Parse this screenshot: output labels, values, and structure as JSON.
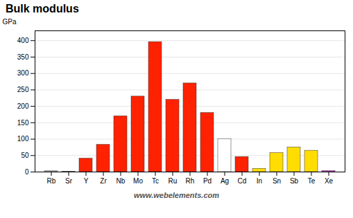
{
  "chart_data": {
    "type": "bar",
    "title": "Bulk modulus",
    "ylabel": "GPa",
    "annotations": [
      "www.webelements.com"
    ],
    "categories": [
      "Rb",
      "Sr",
      "Y",
      "Zr",
      "Nb",
      "Mo",
      "Tc",
      "Ru",
      "Rh",
      "Pd",
      "Ag",
      "Cd",
      "In",
      "Sn",
      "Sb",
      "Te",
      "Xe"
    ],
    "values": [
      2.5,
      1.0,
      41,
      83,
      170,
      230,
      396,
      220,
      270,
      180,
      100,
      46,
      10,
      58,
      75,
      65,
      3
    ],
    "colors": [
      "#bbbbbb",
      "#bbbbbb",
      "#ff2200",
      "#ff2200",
      "#ff2200",
      "#ff2200",
      "#ff2200",
      "#ff2200",
      "#ff2200",
      "#ff2200",
      "#ffffff",
      "#ff2200",
      "#ffdd00",
      "#ffdd00",
      "#ffdd00",
      "#ffdd00",
      "#cc44cc"
    ],
    "ylim": [
      0,
      430
    ],
    "yticks": [
      0,
      50,
      100,
      150,
      200,
      250,
      300,
      350,
      400
    ],
    "grid": true
  }
}
